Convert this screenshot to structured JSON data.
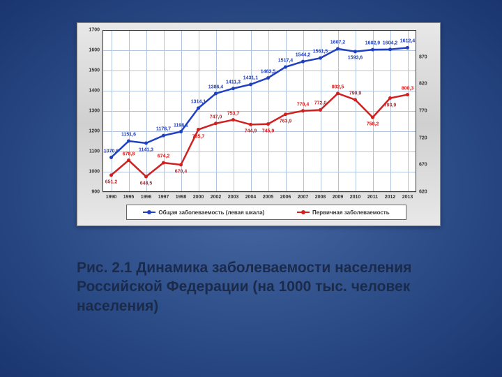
{
  "caption": "Рис. 2.1 Динамика заболеваемости населения Российской Федерации (на 1000 тыс. человек населения)",
  "chart": {
    "type": "line",
    "background_color": "#e0e0e0",
    "plot_background": "#ffffff",
    "grid_color": "#b0c4de",
    "x_categories": [
      "1990",
      "1995",
      "1996",
      "1997",
      "1998",
      "2000",
      "2002",
      "2003",
      "2004",
      "2005",
      "2006",
      "2007",
      "2008",
      "2009",
      "2010",
      "2011",
      "2012",
      "2013"
    ],
    "left_axis": {
      "min": 900,
      "max": 1700,
      "ticks": [
        900,
        1000,
        1100,
        1200,
        1300,
        1400,
        1500,
        1600,
        1700
      ],
      "color": "#333333",
      "fontsize": 7
    },
    "right_axis": {
      "min": 620,
      "max": 920,
      "ticks": [
        620,
        670,
        720,
        770,
        820,
        870
      ],
      "color": "#333333",
      "fontsize": 7
    },
    "series": [
      {
        "name": "Общая заболеваемость (левая шкала)",
        "axis": "left",
        "color": "#2040c0",
        "line_width": 2.5,
        "marker": "circle",
        "marker_size": 5,
        "label_color": "#2040c0",
        "label_fontsize": 7,
        "values": [
          1070.6,
          1151.6,
          1141.3,
          1178.7,
          1198.1,
          1314.1,
          1386.4,
          1411.3,
          1431.1,
          1463.5,
          1517.4,
          1544.2,
          1561.5,
          1607.2,
          1593.6,
          1602.9,
          1604.2,
          1612.4
        ],
        "label_dy": [
          -9,
          -9,
          10,
          -9,
          -9,
          -9,
          -9,
          -9,
          -9,
          -9,
          -9,
          -9,
          -9,
          -9,
          9,
          -9,
          -9,
          -9
        ]
      },
      {
        "name": "Первичная заболеваемость",
        "axis": "right",
        "color": "#d02020",
        "line_width": 2.5,
        "marker": "circle",
        "marker_size": 5,
        "label_color": "#d02020",
        "label_fontsize": 7,
        "values": [
          651.2,
          678.8,
          648.5,
          674.2,
          670.4,
          735.7,
          747.0,
          753.7,
          744.9,
          745.9,
          763.9,
          770.4,
          772.0,
          802.5,
          790.9,
          758.2,
          793.9,
          800.3
        ],
        "label_dy": [
          10,
          -9,
          10,
          -9,
          10,
          10,
          -9,
          -9,
          10,
          10,
          10,
          -9,
          -9,
          -9,
          -9,
          10,
          10,
          -9
        ]
      }
    ],
    "legend": {
      "position": "bottom",
      "background": "#ffffff",
      "border_color": "#666666"
    }
  }
}
